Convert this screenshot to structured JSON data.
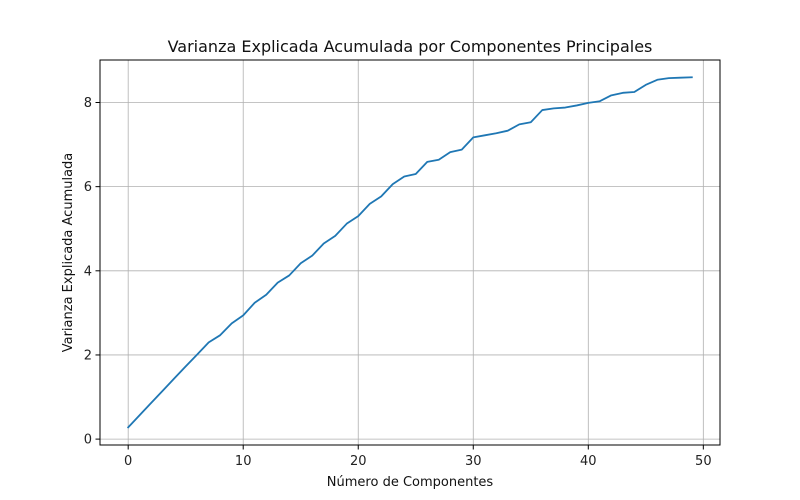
{
  "chart_data": {
    "type": "line",
    "title": "Varianza Explicada Acumulada por Componentes Principales",
    "xlabel": "Número de Componentes",
    "ylabel": "Varianza Explicada Acumulada",
    "xlim": [
      -2.45,
      51.45
    ],
    "ylim": [
      -0.14,
      9.01
    ],
    "xticks": [
      0,
      10,
      20,
      30,
      40,
      50
    ],
    "yticks": [
      0,
      2,
      4,
      6,
      8
    ],
    "grid": true,
    "line_color": "#1f77b4",
    "series": [
      {
        "x": [
          0,
          1,
          2,
          3,
          4,
          5,
          6,
          7,
          8,
          9,
          10,
          11,
          12,
          13,
          14,
          15,
          16,
          17,
          18,
          19,
          20,
          21,
          22,
          23,
          24,
          25,
          26,
          27,
          28,
          29,
          30,
          31,
          32,
          33,
          34,
          35,
          36,
          37,
          38,
          39,
          40,
          41,
          42,
          43,
          44,
          45,
          46,
          47,
          48,
          49
        ],
        "values": [
          0.28,
          0.57,
          0.86,
          1.15,
          1.44,
          1.73,
          2.01,
          2.3,
          2.47,
          2.75,
          2.94,
          3.24,
          3.43,
          3.72,
          3.89,
          4.18,
          4.36,
          4.65,
          4.83,
          5.12,
          5.3,
          5.59,
          5.77,
          6.06,
          6.24,
          6.3,
          6.59,
          6.64,
          6.82,
          6.88,
          7.17,
          7.22,
          7.27,
          7.33,
          7.48,
          7.53,
          7.82,
          7.86,
          7.88,
          7.93,
          7.99,
          8.03,
          8.17,
          8.23,
          8.25,
          8.42,
          8.54,
          8.58,
          8.59,
          8.6
        ]
      }
    ]
  }
}
